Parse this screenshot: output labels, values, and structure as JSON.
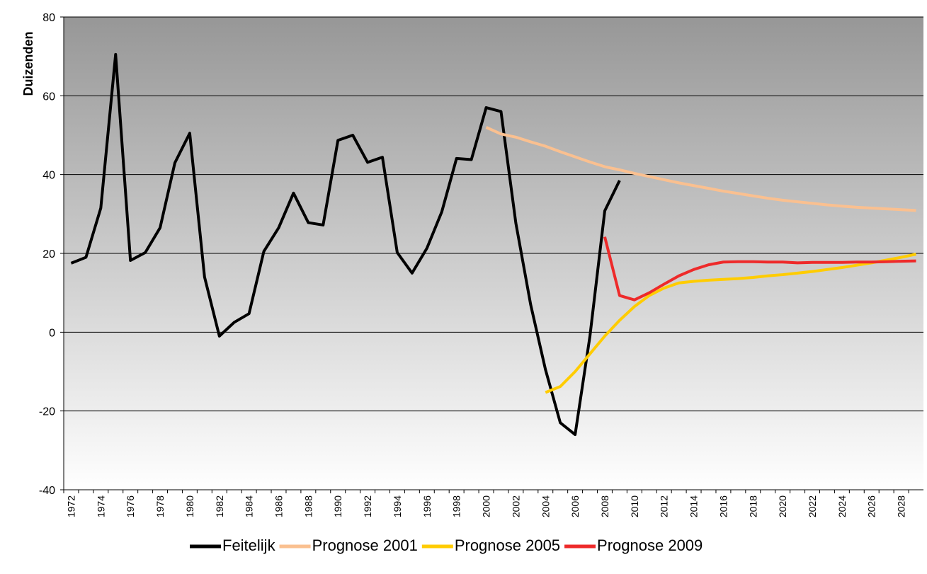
{
  "chart_data": {
    "type": "line",
    "y_label": "Duizenden",
    "categories": [
      "1972",
      null,
      "1974",
      null,
      "1976",
      null,
      "1978",
      null,
      "1980",
      null,
      "1982",
      null,
      "1984",
      null,
      "1986",
      null,
      "1988",
      null,
      "1990",
      null,
      "1992",
      null,
      "1994",
      null,
      "1996",
      null,
      "1998",
      null,
      "2000",
      null,
      "2002",
      null,
      "2004",
      null,
      "2006",
      null,
      "2008",
      null,
      "2010",
      null,
      "2012",
      null,
      "2014",
      null,
      "2016",
      null,
      "2018",
      null,
      "2020",
      null,
      "2022",
      null,
      "2024",
      null,
      "2026",
      null,
      "2028",
      null
    ],
    "series": [
      {
        "name": "Feitelijk",
        "color": "#000000",
        "values": [
          17.5,
          19,
          31.5,
          70.5,
          18.2,
          20.2,
          26.5,
          43,
          50.5,
          14,
          -1,
          2.5,
          4.7,
          20.5,
          26.5,
          35.3,
          27.8,
          27.2,
          48.7,
          50,
          43.1,
          44.4,
          20.2,
          15,
          21.3,
          30.5,
          44.1,
          43.8,
          57,
          56,
          27.7,
          7,
          -9.5,
          -23,
          -26,
          -1,
          30.8,
          38.5,
          null,
          null,
          null,
          null,
          null,
          null,
          null,
          null,
          null,
          null,
          null,
          null,
          null,
          null,
          null,
          null,
          null,
          null,
          null,
          null
        ]
      },
      {
        "name": "Prognose 2001",
        "color": "#fac090",
        "values": [
          null,
          null,
          null,
          null,
          null,
          null,
          null,
          null,
          null,
          null,
          null,
          null,
          null,
          null,
          null,
          null,
          null,
          null,
          null,
          null,
          null,
          null,
          null,
          null,
          null,
          null,
          null,
          null,
          52,
          50.3,
          49.5,
          48.3,
          47.2,
          45.8,
          44.5,
          43.2,
          42,
          41.2,
          40.3,
          39.5,
          38.7,
          37.9,
          37.2,
          36.5,
          35.8,
          35.2,
          34.6,
          34,
          33.5,
          33.1,
          32.7,
          32.3,
          32,
          31.7,
          31.5,
          31.3,
          31.1,
          30.9
        ]
      },
      {
        "name": "Prognose 2005",
        "color": "#ffcc00",
        "values": [
          null,
          null,
          null,
          null,
          null,
          null,
          null,
          null,
          null,
          null,
          null,
          null,
          null,
          null,
          null,
          null,
          null,
          null,
          null,
          null,
          null,
          null,
          null,
          null,
          null,
          null,
          null,
          null,
          null,
          null,
          null,
          null,
          -15.3,
          -13.8,
          -10,
          -5.5,
          -1,
          3,
          6.5,
          9.3,
          11.2,
          12.5,
          12.9,
          13.2,
          13.4,
          13.6,
          13.9,
          14.3,
          14.6,
          15,
          15.4,
          15.9,
          16.4,
          17,
          17.6,
          18.3,
          19,
          19.8
        ]
      },
      {
        "name": "Prognose 2009",
        "color": "#ee2a2a",
        "values": [
          null,
          null,
          null,
          null,
          null,
          null,
          null,
          null,
          null,
          null,
          null,
          null,
          null,
          null,
          null,
          null,
          null,
          null,
          null,
          null,
          null,
          null,
          null,
          null,
          null,
          null,
          null,
          null,
          null,
          null,
          null,
          null,
          null,
          null,
          null,
          null,
          24.2,
          9.3,
          8.2,
          10,
          12.2,
          14.3,
          15.9,
          17.1,
          17.8,
          17.9,
          17.9,
          17.8,
          17.8,
          17.6,
          17.7,
          17.7,
          17.7,
          17.8,
          17.8,
          17.9,
          18,
          18.1
        ]
      }
    ],
    "ylim": [
      -40,
      80
    ],
    "yticks": [
      -40,
      -20,
      0,
      20,
      40,
      60,
      80
    ],
    "grid": true,
    "legend": "bottom"
  }
}
